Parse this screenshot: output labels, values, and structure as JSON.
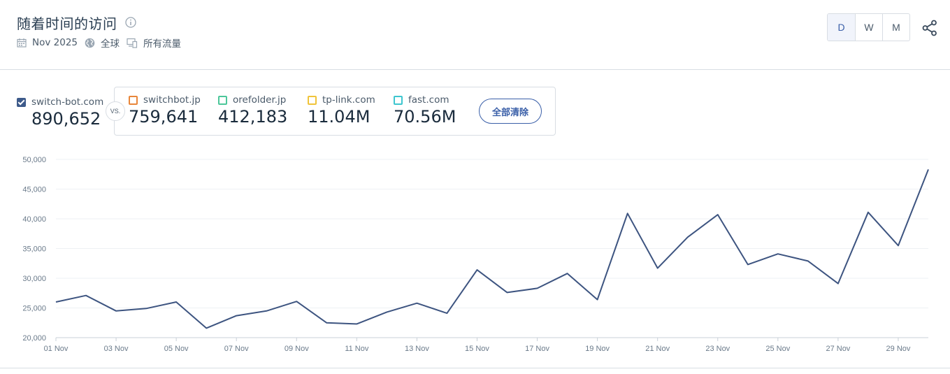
{
  "header": {
    "title": "随着时间的访问",
    "date": "Nov 2025",
    "region": "全球",
    "traffic": "所有流量"
  },
  "granularity": {
    "options": [
      "D",
      "W",
      "M"
    ],
    "selected": "D"
  },
  "main_site": {
    "name": "switch-bot.com",
    "value": "890,652",
    "checked": true
  },
  "vs_label": "VS.",
  "competitors": [
    {
      "name": "switchbot.jp",
      "value": "759,641",
      "color": "#e8863a"
    },
    {
      "name": "orefolder.jp",
      "value": "412,183",
      "color": "#4cc79a"
    },
    {
      "name": "tp-link.com",
      "value": "11.04M",
      "color": "#f0c43a"
    },
    {
      "name": "fast.com",
      "value": "70.56M",
      "color": "#3ec6cf"
    }
  ],
  "clear_all": "全部清除",
  "colors": {
    "line": "#3d5480",
    "accent": "#3a5fa8"
  },
  "chart_data": {
    "type": "line",
    "ylim": [
      20000,
      50000
    ],
    "y_ticks": [
      "20,000",
      "25,000",
      "30,000",
      "35,000",
      "40,000",
      "45,000",
      "50,000"
    ],
    "x_ticks": [
      "01 Nov",
      "03 Nov",
      "05 Nov",
      "07 Nov",
      "09 Nov",
      "11 Nov",
      "13 Nov",
      "15 Nov",
      "17 Nov",
      "19 Nov",
      "21 Nov",
      "23 Nov",
      "25 Nov",
      "27 Nov",
      "29 Nov"
    ],
    "grid": true,
    "series": [
      {
        "name": "switch-bot.com",
        "x": [
          "01 Nov",
          "02 Nov",
          "03 Nov",
          "04 Nov",
          "05 Nov",
          "06 Nov",
          "07 Nov",
          "08 Nov",
          "09 Nov",
          "10 Nov",
          "11 Nov",
          "12 Nov",
          "13 Nov",
          "14 Nov",
          "15 Nov",
          "16 Nov",
          "17 Nov",
          "18 Nov",
          "19 Nov",
          "20 Nov",
          "21 Nov",
          "22 Nov",
          "23 Nov",
          "24 Nov",
          "25 Nov",
          "26 Nov",
          "27 Nov",
          "28 Nov",
          "29 Nov",
          "30 Nov"
        ],
        "values": [
          26000,
          27100,
          24500,
          24900,
          26000,
          21600,
          23700,
          24500,
          26100,
          22500,
          22300,
          24300,
          25800,
          24100,
          31400,
          27600,
          28300,
          30800,
          26400,
          40900,
          31700,
          36900,
          40700,
          32300,
          34100,
          32900,
          29100,
          41100,
          35500,
          48300
        ]
      }
    ]
  }
}
